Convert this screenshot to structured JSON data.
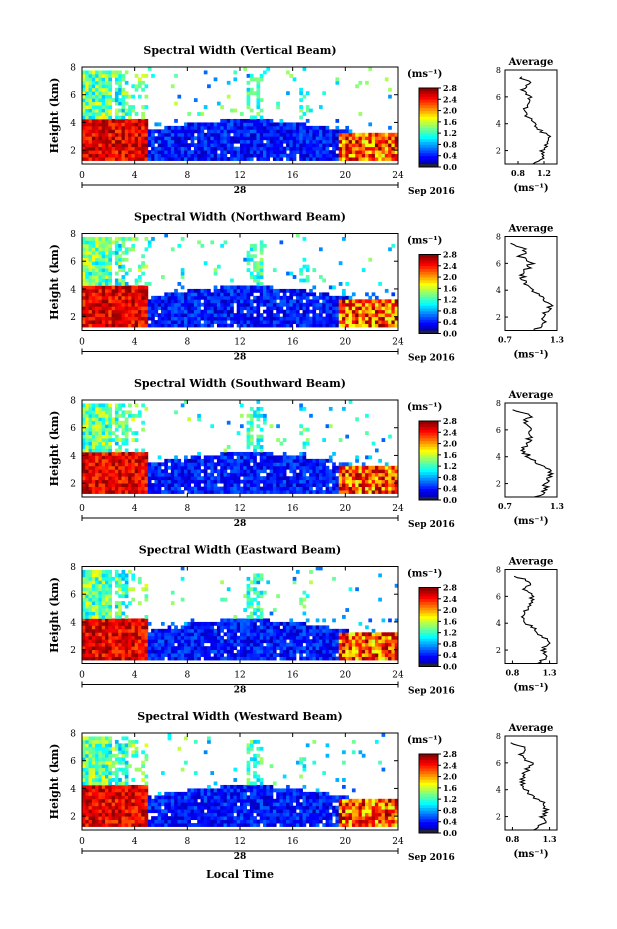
{
  "figure": {
    "xlabel": "Local Time",
    "date_text": "Sep 2016",
    "day_label": "28",
    "ylabel": "Height (km)",
    "unit": "(ms⁻¹)",
    "avg_title": "Average",
    "avg_xlabel": "(ms⁻¹)"
  },
  "chart_data": [
    {
      "type": "heatmap",
      "title": "Spectral Width (Vertical Beam)",
      "xlim": [
        0,
        24
      ],
      "ylim": [
        1,
        8
      ],
      "xticks": [
        0,
        4,
        8,
        12,
        16,
        20,
        24
      ],
      "yticks": [
        2,
        4,
        6,
        8
      ],
      "colorbar": {
        "min": 0.0,
        "max": 2.8,
        "ticks": [
          0.0,
          0.4,
          0.8,
          1.2,
          1.6,
          2.0,
          2.4,
          2.8
        ],
        "tick_labels": [
          "0.0",
          "0.4",
          "0.8",
          "1.2",
          "1.6",
          "2.0",
          "2.4",
          "2.8"
        ]
      },
      "profile": {
        "title": "Average",
        "xlim": [
          0.6,
          1.4
        ],
        "xticks": [
          0.8,
          1.2
        ],
        "xtick_labels": [
          "0.8",
          "1.2"
        ],
        "ylim": [
          1,
          8
        ],
        "yticks": [
          2,
          4,
          6,
          8
        ],
        "heights": [
          1.0,
          1.5,
          2.0,
          2.5,
          3.0,
          3.5,
          4.0,
          4.5,
          5.0,
          5.5,
          6.0,
          6.5,
          7.0,
          7.5
        ],
        "values": [
          1.05,
          1.2,
          1.18,
          1.25,
          1.28,
          1.15,
          1.05,
          0.95,
          0.9,
          0.95,
          1.0,
          0.85,
          1.0,
          0.82
        ]
      }
    },
    {
      "type": "heatmap",
      "title": "Spectral Width (Northward Beam)",
      "xlim": [
        0,
        24
      ],
      "ylim": [
        1,
        8
      ],
      "xticks": [
        0,
        4,
        8,
        12,
        16,
        20,
        24
      ],
      "yticks": [
        2,
        4,
        6,
        8
      ],
      "colorbar": {
        "min": 0.0,
        "max": 2.8,
        "ticks": [
          0.0,
          0.4,
          0.8,
          1.2,
          1.6,
          2.0,
          2.4,
          2.8
        ],
        "tick_labels": [
          "0.0",
          "0.4",
          "0.8",
          "1.2",
          "1.6",
          "2.0",
          "2.4",
          "2.8"
        ]
      },
      "profile": {
        "title": "Average",
        "xlim": [
          0.7,
          1.3
        ],
        "xticks": [
          0.7,
          1.3
        ],
        "xtick_labels": [
          "0.7",
          "1.3"
        ],
        "ylim": [
          1,
          8
        ],
        "yticks": [
          2,
          4,
          6,
          8
        ],
        "heights": [
          1.0,
          1.5,
          2.0,
          2.5,
          3.0,
          3.5,
          4.0,
          4.5,
          5.0,
          5.5,
          6.0,
          6.5,
          7.0,
          7.5
        ],
        "values": [
          1.05,
          1.15,
          1.12,
          1.2,
          1.22,
          1.1,
          1.0,
          0.92,
          0.9,
          0.95,
          1.0,
          0.88,
          0.95,
          0.8
        ]
      }
    },
    {
      "type": "heatmap",
      "title": "Spectral Width (Southward Beam)",
      "xlim": [
        0,
        24
      ],
      "ylim": [
        1,
        8
      ],
      "xticks": [
        0,
        4,
        8,
        12,
        16,
        20,
        24
      ],
      "yticks": [
        2,
        4,
        6,
        8
      ],
      "colorbar": {
        "min": 0.0,
        "max": 2.8,
        "ticks": [
          0.0,
          0.4,
          0.8,
          1.2,
          1.6,
          2.0,
          2.4,
          2.8
        ],
        "tick_labels": [
          "0.0",
          "0.4",
          "0.8",
          "1.2",
          "1.6",
          "2.0",
          "2.4",
          "2.8"
        ]
      },
      "profile": {
        "title": "Average",
        "xlim": [
          0.7,
          1.3
        ],
        "xticks": [
          0.7,
          1.3
        ],
        "xtick_labels": [
          "0.7",
          "1.3"
        ],
        "ylim": [
          1,
          8
        ],
        "yticks": [
          2,
          4,
          6,
          8
        ],
        "heights": [
          1.0,
          1.5,
          2.0,
          2.5,
          3.0,
          3.5,
          4.0,
          4.5,
          5.0,
          5.5,
          6.0,
          6.5,
          7.0,
          7.5
        ],
        "values": [
          1.05,
          1.18,
          1.15,
          1.22,
          1.2,
          1.08,
          0.98,
          0.9,
          0.95,
          1.0,
          1.02,
          0.9,
          1.0,
          0.82
        ]
      }
    },
    {
      "type": "heatmap",
      "title": "Spectral Width (Eastward Beam)",
      "xlim": [
        0,
        24
      ],
      "ylim": [
        1,
        8
      ],
      "xticks": [
        0,
        4,
        8,
        12,
        16,
        20,
        24
      ],
      "yticks": [
        2,
        4,
        6,
        8
      ],
      "colorbar": {
        "min": 0.0,
        "max": 2.8,
        "ticks": [
          0.0,
          0.4,
          0.8,
          1.2,
          1.6,
          2.0,
          2.4,
          2.8
        ],
        "tick_labels": [
          "0.0",
          "0.4",
          "0.8",
          "1.2",
          "1.6",
          "2.0",
          "2.4",
          "2.8"
        ]
      },
      "profile": {
        "title": "Average",
        "xlim": [
          0.7,
          1.4
        ],
        "xticks": [
          0.8,
          1.3
        ],
        "xtick_labels": [
          "0.8",
          "1.3"
        ],
        "ylim": [
          1,
          8
        ],
        "yticks": [
          2,
          4,
          6,
          8
        ],
        "heights": [
          1.0,
          1.5,
          2.0,
          2.5,
          3.0,
          3.5,
          4.0,
          4.5,
          5.0,
          5.5,
          6.0,
          6.5,
          7.0,
          7.5
        ],
        "values": [
          1.15,
          1.25,
          1.2,
          1.28,
          1.22,
          1.1,
          1.0,
          0.95,
          0.98,
          1.05,
          1.08,
          0.95,
          1.05,
          0.85
        ]
      }
    },
    {
      "type": "heatmap",
      "title": "Spectral Width (Westward Beam)",
      "xlim": [
        0,
        24
      ],
      "ylim": [
        1,
        8
      ],
      "xticks": [
        0,
        4,
        8,
        12,
        16,
        20,
        24
      ],
      "yticks": [
        2,
        4,
        6,
        8
      ],
      "colorbar": {
        "min": 0.0,
        "max": 2.8,
        "ticks": [
          0.0,
          0.4,
          0.8,
          1.2,
          1.6,
          2.0,
          2.4,
          2.8
        ],
        "tick_labels": [
          "0.0",
          "0.4",
          "0.8",
          "1.2",
          "1.6",
          "2.0",
          "2.4",
          "2.8"
        ]
      },
      "profile": {
        "title": "Average",
        "xlim": [
          0.7,
          1.4
        ],
        "xticks": [
          0.8,
          1.3
        ],
        "xtick_labels": [
          "0.8",
          "1.3"
        ],
        "ylim": [
          1,
          8
        ],
        "yticks": [
          2,
          4,
          6,
          8
        ],
        "heights": [
          1.0,
          1.5,
          2.0,
          2.5,
          3.0,
          3.5,
          4.0,
          4.5,
          5.0,
          5.5,
          6.0,
          6.5,
          7.0,
          7.5
        ],
        "values": [
          1.1,
          1.22,
          1.2,
          1.25,
          1.22,
          1.08,
          0.98,
          0.92,
          0.95,
          1.0,
          1.05,
          0.9,
          1.0,
          0.8
        ]
      }
    }
  ]
}
